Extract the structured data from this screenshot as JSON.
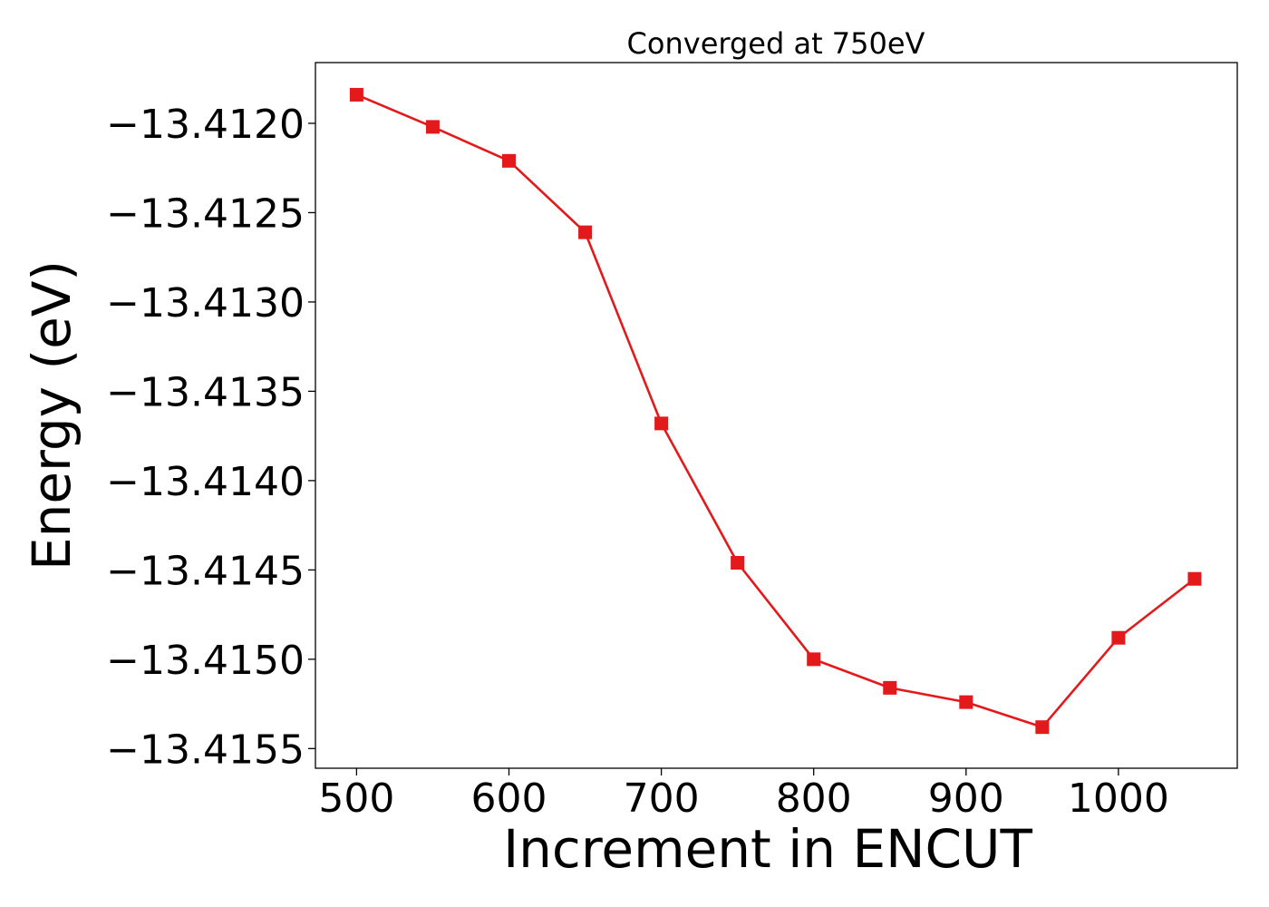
{
  "chart_data": {
    "type": "line",
    "title": "Converged at 750eV",
    "xlabel": "Increment in ENCUT",
    "ylabel": "Energy (eV)",
    "xlim": [
      473,
      1078
    ],
    "ylim": [
      -13.41561,
      -13.41166
    ],
    "xticks": [
      500,
      600,
      700,
      800,
      900,
      1000
    ],
    "xtick_labels": [
      "500",
      "600",
      "700",
      "800",
      "900",
      "1000"
    ],
    "yticks": [
      -13.412,
      -13.4125,
      -13.413,
      -13.4135,
      -13.414,
      -13.4145,
      -13.415,
      -13.4155
    ],
    "ytick_labels": [
      "−13.4120",
      "−13.4125",
      "−13.4130",
      "−13.4135",
      "−13.4140",
      "−13.4145",
      "−13.4150",
      "−13.4155"
    ],
    "grid": false,
    "series": [
      {
        "color": "#e31a1c",
        "marker": "square",
        "x": [
          500,
          550,
          600,
          650,
          700,
          750,
          800,
          850,
          900,
          950,
          1000,
          1050
        ],
        "y": [
          -13.41184,
          -13.41202,
          -13.41221,
          -13.41261,
          -13.41368,
          -13.41446,
          -13.415,
          -13.41516,
          -13.41524,
          -13.41538,
          -13.41488,
          -13.41455
        ]
      }
    ]
  }
}
